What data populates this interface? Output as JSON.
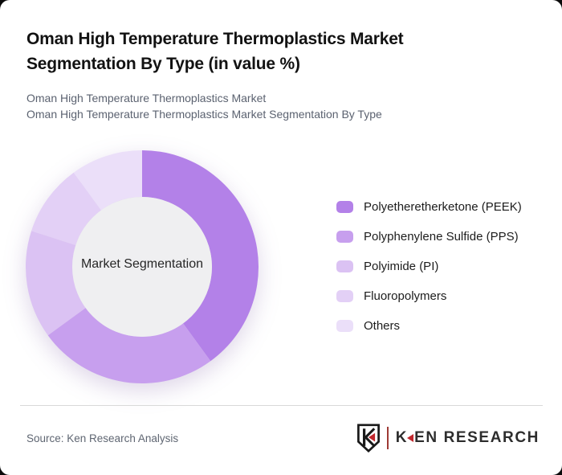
{
  "page": {
    "title_line1": "Oman High Temperature Thermoplastics Market",
    "title_line2": "Segmentation By Type (in value %)",
    "subtitle_line1": "Oman High Temperature Thermoplastics Market",
    "subtitle_line2": "Oman High Temperature Thermoplastics Market Segmentation By Type",
    "source": "Source: Ken Research Analysis"
  },
  "chart_data": {
    "type": "pie",
    "subtype": "donut",
    "title": "Oman High Temperature Thermoplastics Market Segmentation By Type (in value %)",
    "center_label": "Market Segmentation",
    "categories": [
      "Polyetheretherketone (PEEK)",
      "Polyphenylene Sulfide (PPS)",
      "Polyimide (PI)",
      "Fluoropolymers",
      "Others"
    ],
    "values": [
      40,
      25,
      15,
      10,
      10
    ],
    "unit": "value %",
    "colors": [
      "#b381e8",
      "#c79fee",
      "#dbc2f3",
      "#e3d0f6",
      "#ebdff9"
    ],
    "inner_circle_color": "#efeff1",
    "start_angle_deg": 0,
    "direction": "clockwise",
    "legend_position": "right",
    "inner_radius_ratio": 0.6
  },
  "logo": {
    "text_k": "K",
    "text_rest": "EN RESEARCH",
    "mark_letter": "K",
    "accent_color": "#c1272d"
  }
}
